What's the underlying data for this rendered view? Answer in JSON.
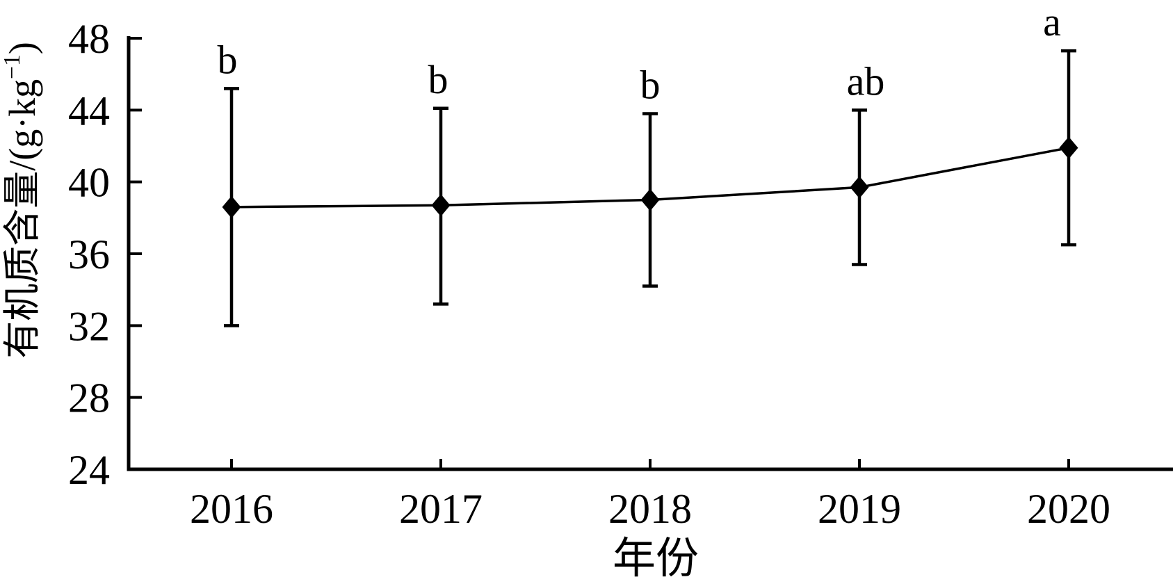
{
  "figure": {
    "background_color": "#ffffff",
    "ink_color": "#000000"
  },
  "chart_data": {
    "type": "line",
    "title": "",
    "xlabel": "年份",
    "ylabel": "有机质含量/(g·kg⁻¹)",
    "ylabel_parts": {
      "main": "有机质含量/(g·kg",
      "superscript": "−1",
      "close": ")"
    },
    "categories": [
      "2016",
      "2017",
      "2018",
      "2019",
      "2020"
    ],
    "series": [
      {
        "name": "有机质含量",
        "marker": "diamond",
        "color": "#000000",
        "values": [
          38.6,
          38.7,
          39.0,
          39.7,
          41.9
        ],
        "error_upper": [
          45.2,
          44.1,
          43.8,
          44.0,
          47.3
        ],
        "error_lower": [
          32.0,
          33.2,
          34.2,
          35.4,
          36.5
        ],
        "significance_letters": [
          "b",
          "b",
          "b",
          "ab",
          "a"
        ]
      }
    ],
    "ylim": [
      24,
      48
    ],
    "y_ticks": [
      24,
      28,
      32,
      36,
      40,
      44,
      48
    ],
    "grid": false,
    "legend_position": "none",
    "error_bars": "symmetric-caps"
  }
}
